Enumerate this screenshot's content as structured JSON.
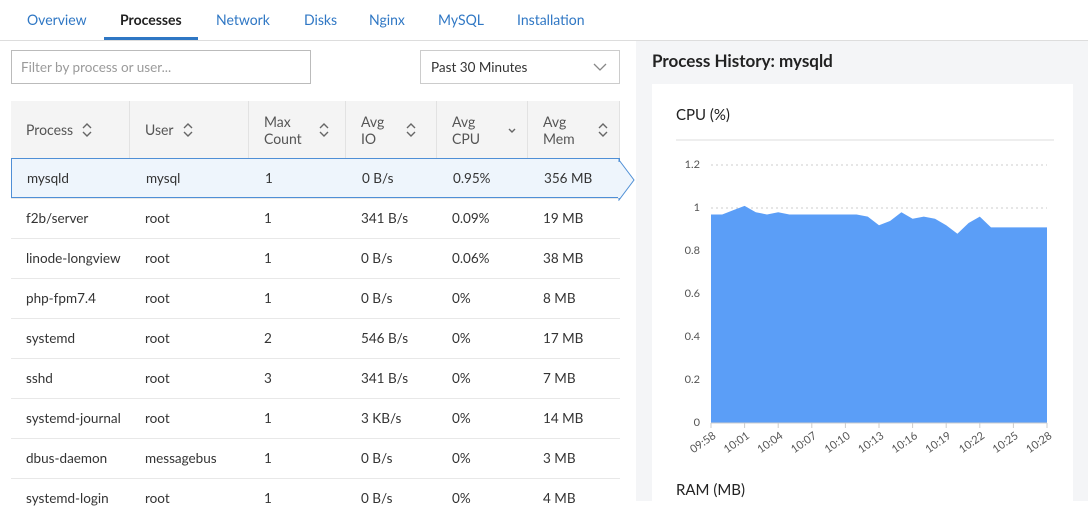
{
  "tabs": [
    "Overview",
    "Processes",
    "Network",
    "Disks",
    "Nginx",
    "MySQL",
    "Installation"
  ],
  "active_tab": 1,
  "filter_placeholder": "Filter by process or user...",
  "time_range": "Past 30 Minutes",
  "table": {
    "columns": [
      "Process",
      "User",
      "Max Count",
      "Avg IO",
      "Avg CPU",
      "Avg Mem"
    ],
    "rows": [
      [
        "mysqld",
        "mysql",
        "1",
        "0 B/s",
        "0.95%",
        "356 MB"
      ],
      [
        "f2b/server",
        "root",
        "1",
        "341 B/s",
        "0.09%",
        "19 MB"
      ],
      [
        "linode-longview",
        "root",
        "1",
        "0 B/s",
        "0.06%",
        "38 MB"
      ],
      [
        "php-fpm7.4",
        "root",
        "1",
        "0 B/s",
        "0%",
        "8 MB"
      ],
      [
        "systemd",
        "root",
        "2",
        "546 B/s",
        "0%",
        "17 MB"
      ],
      [
        "sshd",
        "root",
        "3",
        "341 B/s",
        "0%",
        "7 MB"
      ],
      [
        "systemd-journal",
        "root",
        "1",
        "3 KB/s",
        "0%",
        "14 MB"
      ],
      [
        "dbus-daemon",
        "messagebus",
        "1",
        "0 B/s",
        "0%",
        "3 MB"
      ],
      [
        "systemd-login",
        "root",
        "1",
        "0 B/s",
        "0%",
        "4 MB"
      ]
    ],
    "selected_row": 0
  },
  "panel_title": "Process History: mysqld",
  "chart_data": {
    "type": "area",
    "title": "CPU (%)",
    "categories": [
      "09:58",
      null,
      null,
      "10:01",
      null,
      null,
      "10:04",
      null,
      null,
      "10:07",
      null,
      null,
      "10:10",
      null,
      null,
      "10:13",
      null,
      null,
      "10:16",
      null,
      null,
      "10:19",
      null,
      null,
      "10:22",
      null,
      null,
      "10:25",
      null,
      null,
      "10:28"
    ],
    "values": [
      0.97,
      0.97,
      0.99,
      1.01,
      0.98,
      0.97,
      0.98,
      0.97,
      0.97,
      0.97,
      0.97,
      0.97,
      0.97,
      0.97,
      0.96,
      0.92,
      0.94,
      0.98,
      0.95,
      0.96,
      0.95,
      0.92,
      0.88,
      0.93,
      0.96,
      0.91,
      0.91,
      0.91,
      0.91,
      0.91,
      0.91
    ],
    "color": "#5b9ef7",
    "ylim": [
      0,
      1.2
    ],
    "yticks": [
      0,
      0.2,
      0.4,
      0.6,
      0.8,
      1,
      1.2
    ],
    "grid": true
  },
  "ram_title": "RAM (MB)"
}
